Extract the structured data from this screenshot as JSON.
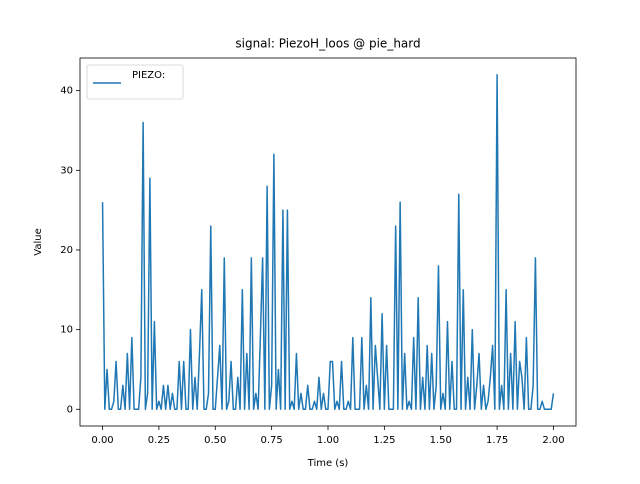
{
  "chart_data": {
    "type": "line",
    "title": "signal: PiezoH_loos @ pie_hard",
    "x_label": "Time (s)",
    "y_label": "Value",
    "legend": "upper left",
    "x": [
      0.0,
      0.01,
      0.02,
      0.03,
      0.04,
      0.05,
      0.06,
      0.07,
      0.08,
      0.09,
      0.1,
      0.11,
      0.12,
      0.13,
      0.14,
      0.15,
      0.16,
      0.17,
      0.18,
      0.19,
      0.2,
      0.21,
      0.22,
      0.23,
      0.24,
      0.25,
      0.26,
      0.27,
      0.28,
      0.29,
      0.3,
      0.31,
      0.32,
      0.33,
      0.34,
      0.35,
      0.36,
      0.37,
      0.38,
      0.39,
      0.4,
      0.41,
      0.42,
      0.43,
      0.44,
      0.45,
      0.46,
      0.47,
      0.48,
      0.49,
      0.5,
      0.51,
      0.52,
      0.53,
      0.54,
      0.55,
      0.56,
      0.57,
      0.58,
      0.59,
      0.6,
      0.61,
      0.62,
      0.63,
      0.64,
      0.65,
      0.66,
      0.67,
      0.68,
      0.69,
      0.7,
      0.71,
      0.72,
      0.73,
      0.74,
      0.75,
      0.76,
      0.77,
      0.78,
      0.79,
      0.8,
      0.81,
      0.82,
      0.83,
      0.84,
      0.85,
      0.86,
      0.87,
      0.88,
      0.89,
      0.9,
      0.91,
      0.92,
      0.93,
      0.94,
      0.95,
      0.96,
      0.97,
      0.98,
      0.99,
      1.0,
      1.01,
      1.02,
      1.03,
      1.04,
      1.05,
      1.06,
      1.07,
      1.08,
      1.09,
      1.1,
      1.11,
      1.12,
      1.13,
      1.14,
      1.15,
      1.16,
      1.17,
      1.18,
      1.19,
      1.2,
      1.21,
      1.22,
      1.23,
      1.24,
      1.25,
      1.26,
      1.27,
      1.28,
      1.29,
      1.3,
      1.31,
      1.32,
      1.33,
      1.34,
      1.35,
      1.36,
      1.37,
      1.38,
      1.39,
      1.4,
      1.41,
      1.42,
      1.43,
      1.44,
      1.45,
      1.46,
      1.47,
      1.48,
      1.49,
      1.5,
      1.51,
      1.52,
      1.53,
      1.54,
      1.55,
      1.56,
      1.57,
      1.58,
      1.59,
      1.6,
      1.61,
      1.62,
      1.63,
      1.64,
      1.65,
      1.66,
      1.67,
      1.68,
      1.69,
      1.7,
      1.71,
      1.72,
      1.73,
      1.74,
      1.75,
      1.76,
      1.77,
      1.78,
      1.79,
      1.8,
      1.81,
      1.82,
      1.83,
      1.84,
      1.85,
      1.86,
      1.87,
      1.88,
      1.89,
      1.9,
      1.91,
      1.92,
      1.93,
      1.94,
      1.95,
      1.96,
      1.97,
      1.98,
      1.99,
      2.0
    ],
    "series": [
      {
        "name": "PIEZO:",
        "color": "#1f77b4",
        "values": [
          26,
          0,
          5,
          0,
          0,
          1,
          6,
          0,
          0,
          3,
          0,
          7,
          0,
          9,
          0,
          0,
          0,
          4,
          36,
          0,
          2,
          29,
          0,
          11,
          0,
          1,
          0,
          3,
          0,
          3,
          0,
          2,
          0,
          0,
          6,
          0,
          6,
          0,
          0,
          10,
          0,
          4,
          0,
          7,
          15,
          0,
          0,
          2,
          23,
          0,
          0,
          4,
          8,
          0,
          19,
          0,
          1,
          6,
          0,
          0,
          4,
          0,
          15,
          0,
          7,
          0,
          19,
          0,
          2,
          0,
          9,
          19,
          0,
          28,
          0,
          3,
          32,
          0,
          5,
          0,
          25,
          0,
          25,
          0,
          1,
          0,
          7,
          0,
          2,
          0,
          0,
          3,
          0,
          0,
          1,
          0,
          4,
          0,
          2,
          0,
          0,
          6,
          6,
          0,
          1,
          0,
          6,
          0,
          0,
          1,
          0,
          9,
          0,
          0,
          0,
          9,
          0,
          3,
          0,
          14,
          0,
          8,
          4,
          0,
          12,
          0,
          8,
          0,
          0,
          0,
          23,
          0,
          26,
          0,
          7,
          0,
          1,
          0,
          9,
          0,
          14,
          0,
          4,
          0,
          8,
          0,
          7,
          0,
          3,
          18,
          0,
          2,
          0,
          11,
          0,
          6,
          0,
          0,
          27,
          0,
          15,
          0,
          4,
          0,
          10,
          0,
          3,
          7,
          0,
          3,
          0,
          1,
          4,
          8,
          0,
          42,
          0,
          3,
          0,
          15,
          0,
          7,
          0,
          11,
          0,
          6,
          4,
          0,
          9,
          0,
          0,
          3,
          19,
          0,
          0,
          1,
          0,
          0,
          0,
          0,
          2
        ]
      }
    ],
    "xlim": [
      -0.1,
      2.1
    ],
    "ylim": [
      -2.1,
      44.1
    ],
    "xticks": [
      {
        "value": 0,
        "label": "0.00"
      },
      {
        "value": 0.25,
        "label": "0.25"
      },
      {
        "value": 0.5,
        "label": "0.50"
      },
      {
        "value": 0.75,
        "label": "0.75"
      },
      {
        "value": 1,
        "label": "1.00"
      },
      {
        "value": 1.25,
        "label": "1.25"
      },
      {
        "value": 1.5,
        "label": "1.50"
      },
      {
        "value": 1.75,
        "label": "1.75"
      },
      {
        "value": 2,
        "label": "2.00"
      }
    ],
    "yticks": [
      0,
      10,
      20,
      30,
      40
    ],
    "grid": false
  }
}
